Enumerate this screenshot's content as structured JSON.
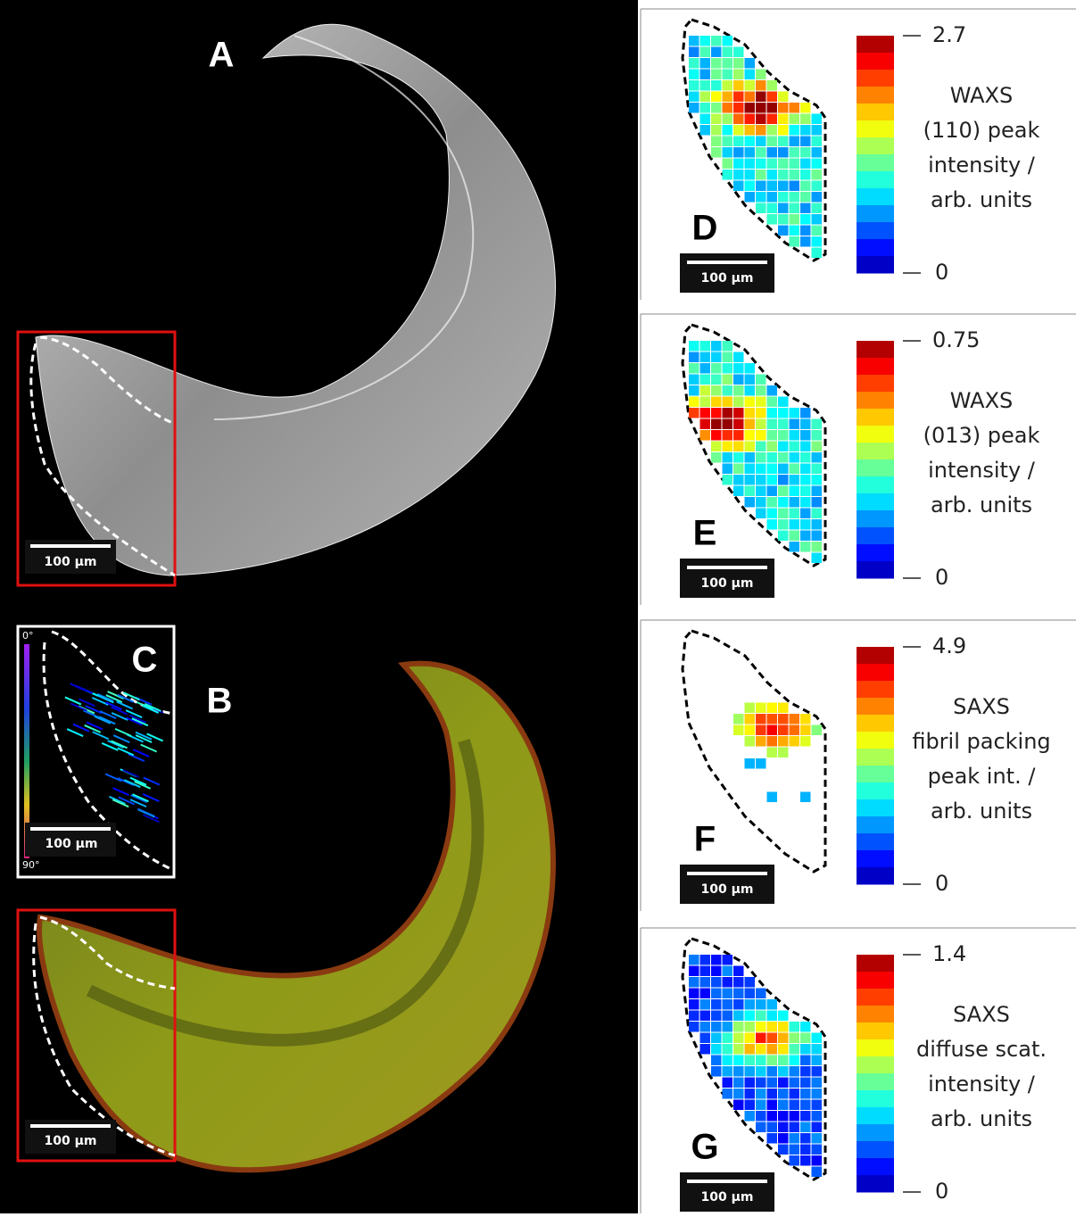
{
  "left": {
    "panel_a": {
      "letter": "A",
      "scale_bar": "100 µm"
    },
    "panel_c": {
      "letter": "C",
      "scale_bar": "100 µm",
      "angle_min": "0°",
      "angle_max": "90°"
    },
    "panel_b": {
      "letter": "B",
      "scale_bar": "100 µm"
    }
  },
  "maps": [
    {
      "letter": "D",
      "scale_bar": "100 µm",
      "max": "2.7",
      "min": "0",
      "label_lines": [
        "WAXS",
        "(110) peak",
        "intensity /",
        "arb. units"
      ]
    },
    {
      "letter": "E",
      "scale_bar": "100 µm",
      "max": "0.75",
      "min": "0",
      "label_lines": [
        "WAXS",
        "(013) peak",
        "intensity /",
        "arb. units"
      ]
    },
    {
      "letter": "F",
      "scale_bar": "100 µm",
      "max": "4.9",
      "min": "0",
      "label_lines": [
        "SAXS",
        "fibril packing",
        "peak int. /",
        "arb. units"
      ]
    },
    {
      "letter": "G",
      "scale_bar": "100 µm",
      "max": "1.4",
      "min": "0",
      "label_lines": [
        "SAXS",
        "diffuse scat.",
        "intensity /",
        "arb. units"
      ]
    }
  ]
}
